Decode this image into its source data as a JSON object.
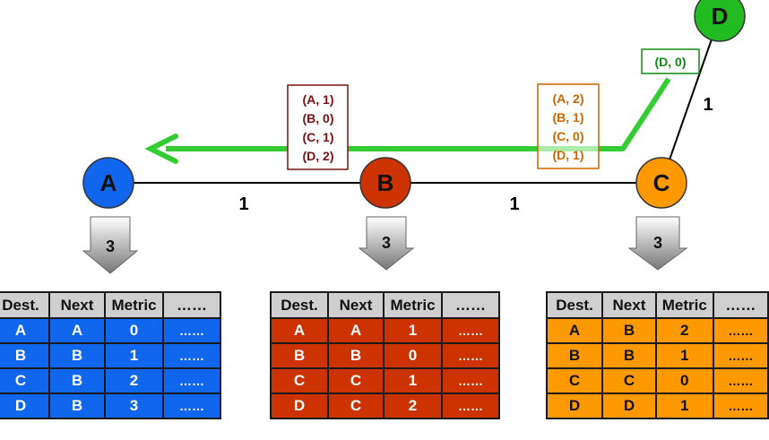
{
  "colors": {
    "A": "#1166ee",
    "B": "#cc3300",
    "C": "#ff9900",
    "D": "#22bb22",
    "vector_B_text": "#7a1010",
    "vector_C_text": "#cc6600",
    "vector_D_text": "#118811",
    "arrow": "#33cc33"
  },
  "nodes": {
    "A": "A",
    "B": "B",
    "C": "C",
    "D": "D"
  },
  "links": {
    "A_B": "1",
    "B_C": "1",
    "C_D": "1"
  },
  "vectors": {
    "from_B": [
      "(A, 1)",
      "(B, 0)",
      "(C, 1)",
      "(D, 2)"
    ],
    "from_C": [
      "(A, 2)",
      "(B, 1)",
      "(C, 0)",
      "(D, 1)"
    ],
    "from_D": [
      "(D, 0)"
    ]
  },
  "steps": {
    "A": "3",
    "B": "3",
    "C": "3"
  },
  "tables": {
    "headers": [
      "Dest.",
      "Next",
      "Metric",
      "……"
    ],
    "A": {
      "rows": [
        [
          "A",
          "A",
          "0",
          "……"
        ],
        [
          "B",
          "B",
          "1",
          "……"
        ],
        [
          "C",
          "B",
          "2",
          "……"
        ],
        [
          "D",
          "B",
          "3",
          "……"
        ]
      ]
    },
    "B": {
      "rows": [
        [
          "A",
          "A",
          "1",
          "……"
        ],
        [
          "B",
          "B",
          "0",
          "……"
        ],
        [
          "C",
          "C",
          "1",
          "……"
        ],
        [
          "D",
          "C",
          "2",
          "……"
        ]
      ]
    },
    "C": {
      "rows": [
        [
          "A",
          "B",
          "2",
          "……"
        ],
        [
          "B",
          "B",
          "1",
          "……"
        ],
        [
          "C",
          "C",
          "0",
          "……"
        ],
        [
          "D",
          "D",
          "1",
          "……"
        ]
      ]
    }
  }
}
